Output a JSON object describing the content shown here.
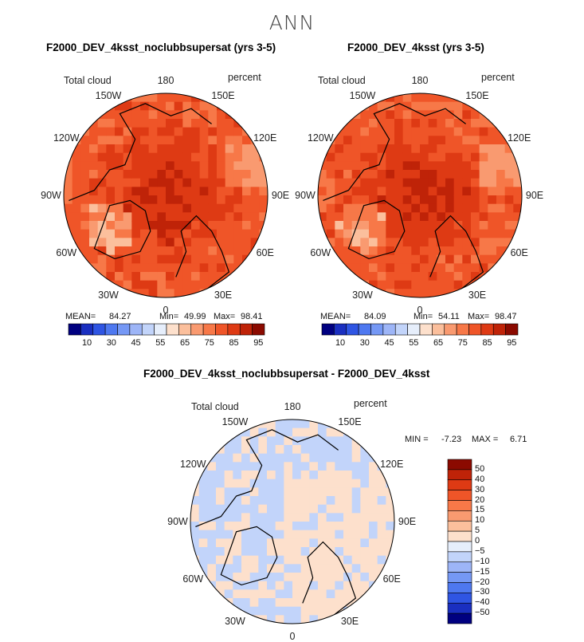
{
  "main_title": "ANN",
  "chart_data": [
    {
      "type": "heatmap",
      "projection": "north polar stereographic",
      "title": "F2000_DEV_4ksst_noclubbsupersat (yrs 3-5)",
      "variable_label": "Total cloud",
      "units_label": "percent",
      "longitude_labels": [
        "180",
        "150E",
        "120E",
        "90E",
        "60E",
        "30E",
        "0",
        "30W",
        "60W",
        "90W",
        "120W",
        "150W"
      ],
      "stats": {
        "mean_label": "MEAN=",
        "mean": "84.27",
        "min_label": "Min=",
        "min": "49.99",
        "max_label": "Max=",
        "max": "98.41"
      },
      "colorbar": {
        "levels": [
          5,
          10,
          20,
          30,
          40,
          45,
          50,
          55,
          60,
          65,
          70,
          75,
          80,
          85,
          90,
          95
        ],
        "tick_labels": [
          "10",
          "30",
          "45",
          "55",
          "65",
          "75",
          "85",
          "95"
        ],
        "colors": [
          "#000080",
          "#1a2fc0",
          "#2f55e3",
          "#4e78f0",
          "#7598f5",
          "#9db5f7",
          "#c2d4fa",
          "#e6eefb",
          "#fde0cc",
          "#fbbf9c",
          "#f99a70",
          "#f77848",
          "#ef5528",
          "#de3a14",
          "#bf2308",
          "#8b0a00"
        ]
      },
      "field": {
        "pole_value": 93,
        "edge_value": 82,
        "land_low_value": 70
      }
    },
    {
      "type": "heatmap",
      "projection": "north polar stereographic",
      "title": "F2000_DEV_4ksst (yrs 3-5)",
      "variable_label": "Total cloud",
      "units_label": "percent",
      "longitude_labels": [
        "180",
        "150E",
        "120E",
        "90E",
        "60E",
        "30E",
        "0",
        "30W",
        "60W",
        "90W",
        "120W",
        "150W"
      ],
      "stats": {
        "mean_label": "MEAN=",
        "mean": "84.09",
        "min_label": "Min=",
        "min": "54.11",
        "max_label": "Max=",
        "max": "98.47"
      },
      "colorbar": {
        "levels": [
          5,
          10,
          20,
          30,
          40,
          45,
          50,
          55,
          60,
          65,
          70,
          75,
          80,
          85,
          90,
          95
        ],
        "tick_labels": [
          "10",
          "30",
          "45",
          "55",
          "65",
          "75",
          "85",
          "95"
        ],
        "colors": [
          "#000080",
          "#1a2fc0",
          "#2f55e3",
          "#4e78f0",
          "#7598f5",
          "#9db5f7",
          "#c2d4fa",
          "#e6eefb",
          "#fde0cc",
          "#fbbf9c",
          "#f99a70",
          "#f77848",
          "#ef5528",
          "#de3a14",
          "#bf2308",
          "#8b0a00"
        ]
      },
      "field": {
        "pole_value": 93,
        "edge_value": 82,
        "land_low_value": 70
      }
    },
    {
      "type": "heatmap",
      "projection": "north polar stereographic",
      "title": "F2000_DEV_4ksst_noclubbsupersat - F2000_DEV_4ksst",
      "variable_label": "Total cloud",
      "units_label": "percent",
      "longitude_labels": [
        "180",
        "150E",
        "120E",
        "90E",
        "60E",
        "30E",
        "0",
        "30W",
        "60W",
        "90W",
        "120W",
        "150W"
      ],
      "stats": {
        "min_label": "MIN =",
        "min": "-7.23",
        "max_label": "MAX =",
        "max": "6.71"
      },
      "colorbar": {
        "tick_labels": [
          "50",
          "40",
          "30",
          "20",
          "15",
          "10",
          "5",
          "0",
          "−5",
          "−10",
          "−15",
          "−20",
          "−30",
          "−40",
          "−50"
        ],
        "colors": [
          "#8b0a00",
          "#bf2308",
          "#de3a14",
          "#ef5528",
          "#f77848",
          "#f99a70",
          "#fbbf9c",
          "#fde0cc",
          "#e6eefb",
          "#c2d4fa",
          "#9db5f7",
          "#7598f5",
          "#4e78f0",
          "#2f55e3",
          "#1a2fc0",
          "#000080"
        ]
      },
      "field": {
        "dominant_positive": "#fde0cc",
        "dominant_negative": "#c2d4fa"
      }
    }
  ]
}
